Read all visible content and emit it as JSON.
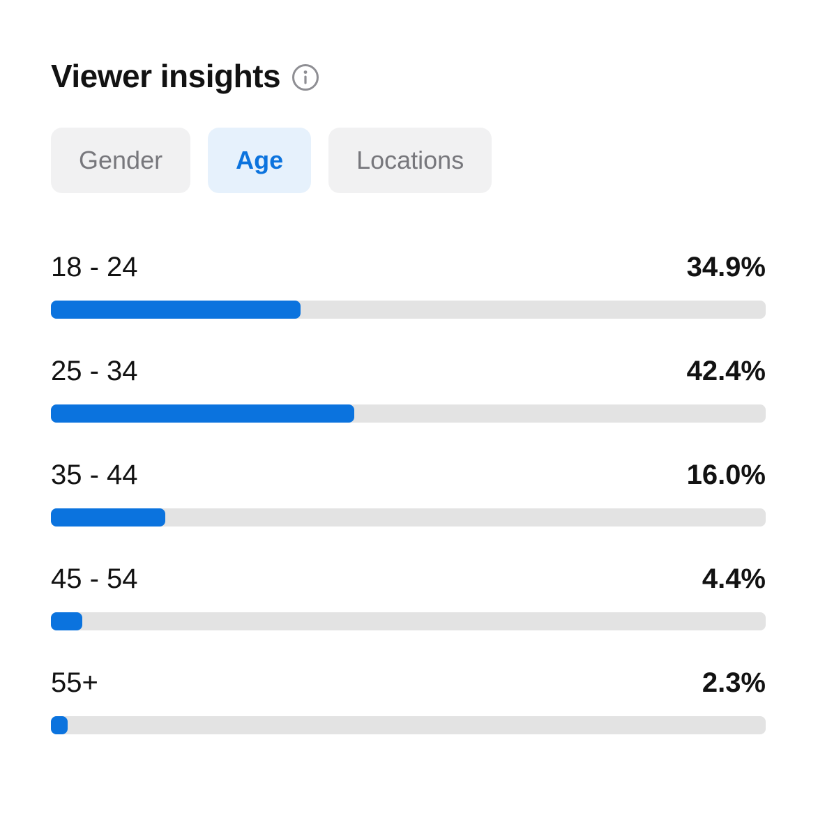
{
  "header": {
    "title": "Viewer insights",
    "info_icon": "info-icon"
  },
  "tabs": [
    {
      "label": "Gender",
      "selected": false
    },
    {
      "label": "Age",
      "selected": true
    },
    {
      "label": "Locations",
      "selected": false
    }
  ],
  "chart_data": {
    "type": "bar",
    "orientation": "horizontal",
    "title": "Viewer insights",
    "categories": [
      "18 - 24",
      "25 - 34",
      "35 - 44",
      "45 - 54",
      "55+"
    ],
    "values": [
      34.9,
      42.4,
      16.0,
      4.4,
      2.3
    ],
    "value_labels": [
      "34.9%",
      "42.4%",
      "16.0%",
      "4.4%",
      "2.3%"
    ],
    "unit": "%",
    "xlim": [
      0,
      100
    ],
    "legend": "none",
    "grid": false
  },
  "colors": {
    "bar_fill": "#0b73de",
    "bar_track": "#e3e3e3",
    "selected_tab_bg": "#e6f1fc",
    "selected_tab_text": "#0b73de",
    "tab_bg": "#f1f1f2",
    "tab_text": "#77777c",
    "info_icon": "#8e8e93",
    "text": "#121212",
    "background": "#ffffff"
  }
}
